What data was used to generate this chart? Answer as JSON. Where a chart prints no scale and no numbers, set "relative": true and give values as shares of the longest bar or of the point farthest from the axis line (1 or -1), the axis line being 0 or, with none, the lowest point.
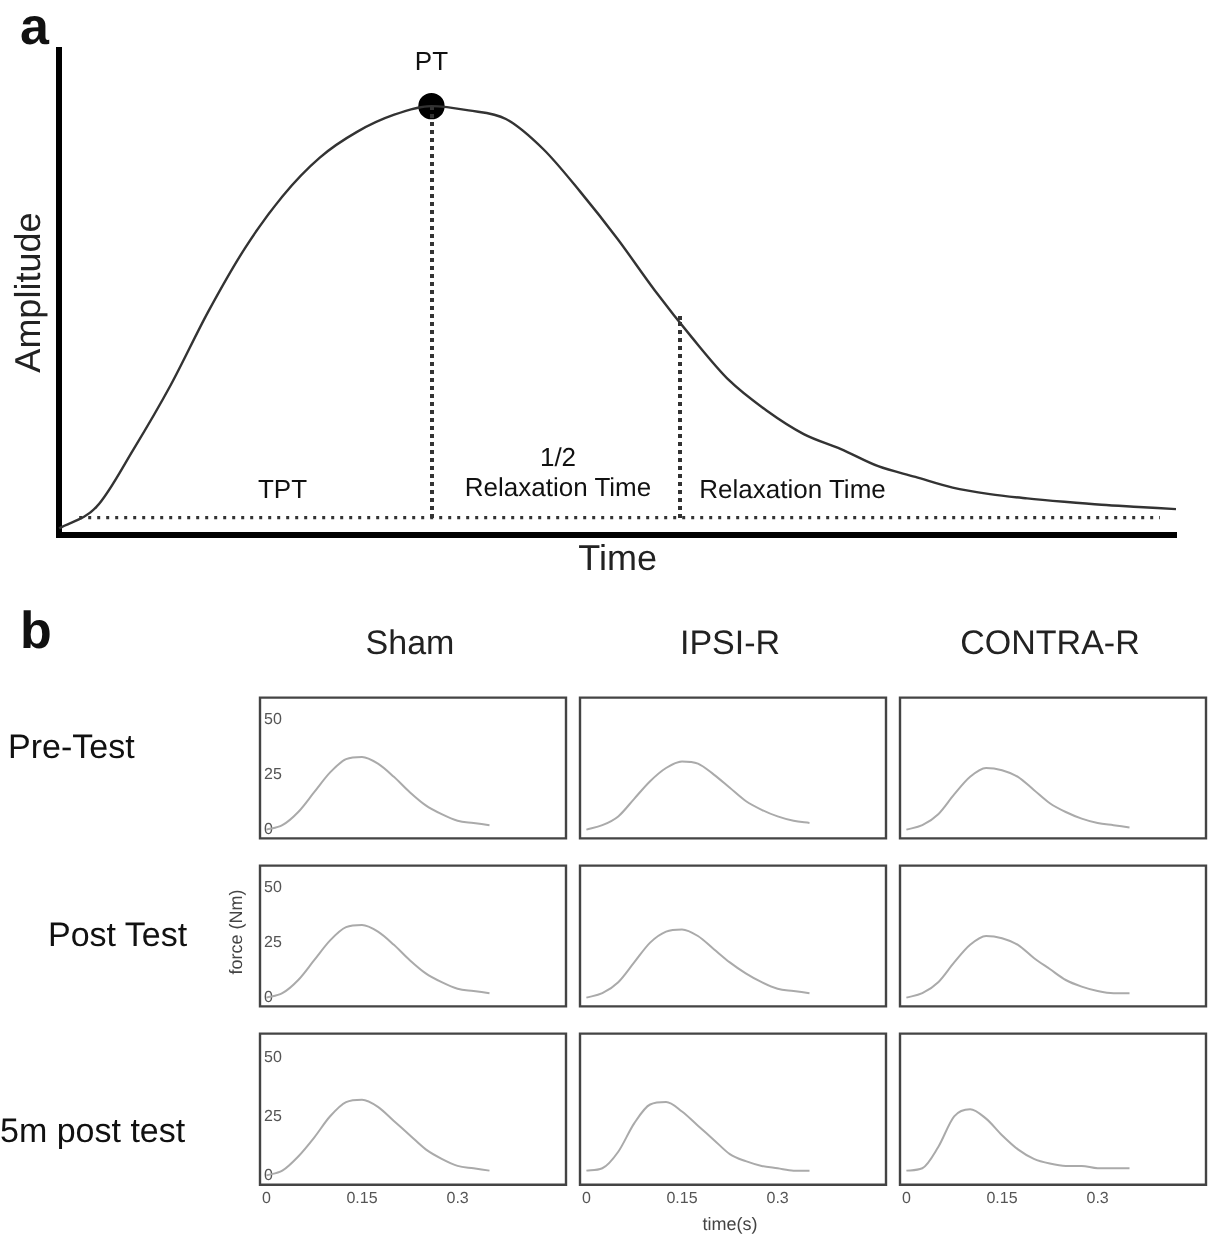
{
  "chart_data": [
    {
      "type": "line",
      "title": "a",
      "xlabel": "Time",
      "ylabel": "Amplitude",
      "relative": true,
      "tick_labels": false,
      "annotations": [
        "PT",
        "TPT",
        "1/2\nRelaxation Time",
        "Relaxation Time"
      ],
      "ref_lines": [
        {
          "axis": "y",
          "value": 0.04,
          "line_style": "dotted",
          "color": "#333333"
        }
      ],
      "categories": [
        null,
        null,
        null,
        null,
        null,
        null,
        null,
        null,
        null,
        null,
        null,
        null,
        null,
        null,
        null,
        null,
        null,
        null,
        null,
        null,
        null,
        null,
        null,
        null,
        null,
        null,
        null,
        null,
        null,
        null,
        null
      ],
      "series": [
        {
          "color": "#333333",
          "values": [
            0.015,
            0.065,
            0.2,
            0.35,
            0.52,
            0.67,
            0.79,
            0.88,
            0.94,
            0.98,
            1.0,
            0.99,
            0.97,
            0.9,
            0.8,
            0.69,
            0.57,
            0.46,
            0.36,
            0.29,
            0.235,
            0.2,
            0.16,
            0.135,
            0.11,
            0.095,
            0.085,
            0.077,
            0.07,
            0.065,
            0.06
          ]
        },
        {
          "color": "#000000",
          "marker": "circle",
          "values": [
            null,
            null,
            null,
            null,
            null,
            null,
            null,
            null,
            null,
            null,
            1.0,
            null,
            null,
            null,
            null,
            null,
            null,
            null,
            null,
            null,
            null,
            null,
            null,
            null,
            null,
            null,
            null,
            null,
            null,
            null,
            null
          ]
        }
      ]
    },
    {
      "type": "line",
      "title": "Sham",
      "annotations": [
        "b",
        "Pre-Test"
      ],
      "tick_labels": "y",
      "color": "#aaaaaa",
      "xlim": [
        -0.01,
        0.47
      ],
      "ylim": [
        -4,
        60
      ],
      "xticks": [
        0,
        0.15,
        0.3
      ],
      "yticks": [
        0,
        25,
        50
      ],
      "x": [
        0,
        0.025,
        0.05,
        0.075,
        0.1,
        0.125,
        0.15,
        0.175,
        0.2,
        0.225,
        0.25,
        0.275,
        0.3,
        0.325,
        0.35
      ],
      "values": [
        0,
        2,
        8,
        17,
        26,
        32,
        33,
        30,
        24,
        17,
        11,
        7,
        4,
        3,
        2
      ]
    },
    {
      "type": "line",
      "title": "IPSI-R",
      "tick_labels": false,
      "color": "#aaaaaa",
      "xlim": [
        -0.01,
        0.47
      ],
      "ylim": [
        -4,
        60
      ],
      "xticks": [
        0,
        0.15,
        0.3
      ],
      "yticks": [
        0,
        25,
        50
      ],
      "x": [
        0,
        0.025,
        0.05,
        0.075,
        0.1,
        0.125,
        0.15,
        0.175,
        0.2,
        0.225,
        0.25,
        0.275,
        0.3,
        0.325,
        0.35
      ],
      "values": [
        0,
        2,
        6,
        14,
        22,
        28,
        31,
        30,
        25,
        19,
        13,
        9,
        6,
        4,
        3
      ]
    },
    {
      "type": "line",
      "title": "CONTRA-R",
      "tick_labels": false,
      "color": "#aaaaaa",
      "xlim": [
        -0.01,
        0.47
      ],
      "ylim": [
        -4,
        60
      ],
      "xticks": [
        0,
        0.15,
        0.3
      ],
      "yticks": [
        0,
        25,
        50
      ],
      "x": [
        0,
        0.025,
        0.05,
        0.075,
        0.1,
        0.125,
        0.15,
        0.175,
        0.2,
        0.225,
        0.25,
        0.275,
        0.3,
        0.325,
        0.35
      ],
      "values": [
        0,
        2,
        7,
        16,
        24,
        28,
        27,
        24,
        18,
        12,
        8,
        5,
        3,
        2,
        1
      ]
    },
    {
      "type": "line",
      "ylabel": "force (Nm)",
      "annotations": [
        "Post Test"
      ],
      "tick_labels": "y",
      "color": "#aaaaaa",
      "xlim": [
        -0.01,
        0.47
      ],
      "ylim": [
        -4,
        60
      ],
      "xticks": [
        0,
        0.15,
        0.3
      ],
      "yticks": [
        0,
        25,
        50
      ],
      "x": [
        0,
        0.025,
        0.05,
        0.075,
        0.1,
        0.125,
        0.15,
        0.175,
        0.2,
        0.225,
        0.25,
        0.275,
        0.3,
        0.325,
        0.35
      ],
      "values": [
        0,
        2,
        8,
        17,
        26,
        32,
        33,
        30,
        24,
        17,
        11,
        7,
        4,
        3,
        2
      ]
    },
    {
      "type": "line",
      "tick_labels": false,
      "color": "#aaaaaa",
      "xlim": [
        -0.01,
        0.47
      ],
      "ylim": [
        -4,
        60
      ],
      "xticks": [
        0,
        0.15,
        0.3
      ],
      "yticks": [
        0,
        25,
        50
      ],
      "x": [
        0,
        0.025,
        0.05,
        0.075,
        0.1,
        0.125,
        0.15,
        0.175,
        0.2,
        0.225,
        0.25,
        0.275,
        0.3,
        0.325,
        0.35
      ],
      "values": [
        0,
        2,
        7,
        16,
        25,
        30,
        31,
        28,
        22,
        16,
        11,
        7,
        4,
        3,
        2
      ]
    },
    {
      "type": "line",
      "tick_labels": false,
      "color": "#aaaaaa",
      "xlim": [
        -0.01,
        0.47
      ],
      "ylim": [
        -4,
        60
      ],
      "xticks": [
        0,
        0.15,
        0.3
      ],
      "yticks": [
        0,
        25,
        50
      ],
      "x": [
        0,
        0.025,
        0.05,
        0.075,
        0.1,
        0.125,
        0.15,
        0.175,
        0.2,
        0.225,
        0.25,
        0.275,
        0.3,
        0.325,
        0.35
      ],
      "values": [
        0,
        2,
        7,
        16,
        24,
        28,
        27,
        24,
        18,
        13,
        8,
        5,
        3,
        2,
        2
      ]
    },
    {
      "type": "line",
      "annotations": [
        "5m post test"
      ],
      "color": "#aaaaaa",
      "xlim": [
        -0.01,
        0.47
      ],
      "ylim": [
        -4,
        60
      ],
      "xticks": [
        0,
        0.15,
        0.3
      ],
      "yticks": [
        0,
        25,
        50
      ],
      "x": [
        0,
        0.025,
        0.05,
        0.075,
        0.1,
        0.125,
        0.15,
        0.175,
        0.2,
        0.225,
        0.25,
        0.275,
        0.3,
        0.325,
        0.35
      ],
      "values": [
        0,
        2,
        8,
        16,
        25,
        31,
        32,
        29,
        23,
        17,
        11,
        7,
        4,
        3,
        2
      ]
    },
    {
      "type": "line",
      "xlabel": "time(s)",
      "tick_labels": "x",
      "color": "#aaaaaa",
      "xlim": [
        -0.01,
        0.47
      ],
      "ylim": [
        -4,
        60
      ],
      "xticks": [
        0,
        0.15,
        0.3
      ],
      "yticks": [
        0,
        25,
        50
      ],
      "x": [
        0,
        0.025,
        0.05,
        0.075,
        0.1,
        0.125,
        0.15,
        0.175,
        0.2,
        0.225,
        0.25,
        0.275,
        0.3,
        0.325,
        0.35
      ],
      "values": [
        2,
        3,
        10,
        22,
        30,
        31,
        27,
        21,
        15,
        9,
        6,
        4,
        3,
        2,
        2
      ]
    },
    {
      "type": "line",
      "tick_labels": "x",
      "color": "#aaaaaa",
      "xlim": [
        -0.01,
        0.47
      ],
      "ylim": [
        -4,
        60
      ],
      "xticks": [
        0,
        0.15,
        0.3
      ],
      "yticks": [
        0,
        25,
        50
      ],
      "x": [
        0,
        0.025,
        0.05,
        0.075,
        0.1,
        0.125,
        0.15,
        0.175,
        0.2,
        0.225,
        0.25,
        0.275,
        0.3,
        0.325,
        0.35
      ],
      "values": [
        2,
        3,
        12,
        25,
        28,
        24,
        17,
        11,
        7,
        5,
        4,
        4,
        3,
        3,
        3
      ]
    }
  ]
}
